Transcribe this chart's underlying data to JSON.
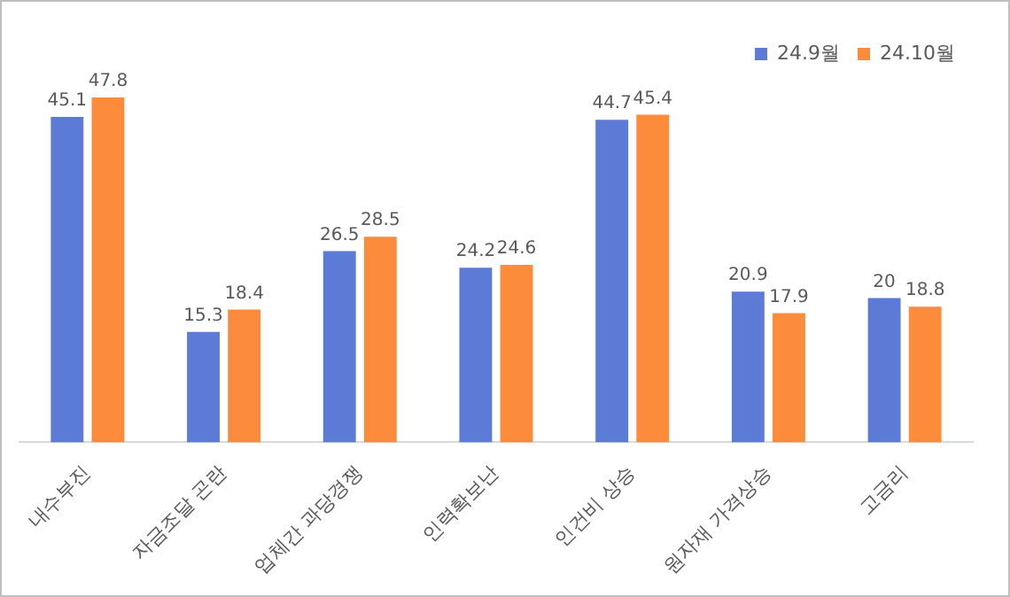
{
  "chart_data": {
    "type": "bar",
    "categories": [
      "내수부진",
      "자금조달 곤란",
      "업체간 과당경쟁",
      "인력확보난",
      "인건비 상승",
      "원자재 가격상승",
      "고금리"
    ],
    "series": [
      {
        "name": "24.9월",
        "color": "#5b7bd6",
        "values": [
          45.1,
          15.3,
          26.5,
          24.2,
          44.7,
          20.9,
          20
        ]
      },
      {
        "name": "24.10월",
        "color": "#fd8b3c",
        "values": [
          47.8,
          18.4,
          28.5,
          24.6,
          45.4,
          17.9,
          18.8
        ]
      }
    ],
    "data_labels": true,
    "legend": "top right",
    "tick_labels": "x"
  }
}
